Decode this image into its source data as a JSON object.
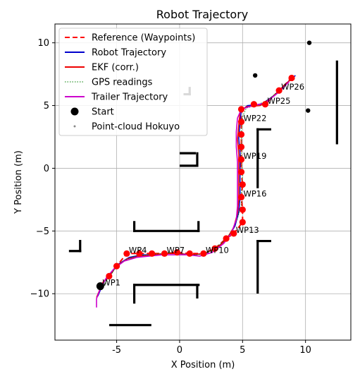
{
  "chart_data": {
    "type": "line",
    "title": "Robot Trajectory",
    "xlabel": "X Position (m)",
    "ylabel": "Y Position (m)",
    "xlim": [
      -9.9,
      13.6
    ],
    "ylim": [
      -13.7,
      11.5
    ],
    "xticks": [
      -5,
      0,
      5,
      10
    ],
    "yticks": [
      -10,
      -5,
      0,
      5,
      10
    ],
    "grid": true,
    "legend_position": "top-left",
    "legend": [
      {
        "label": "Reference (Waypoints)",
        "style": "dashed",
        "color": "#ff0000"
      },
      {
        "label": "Robot Trajectory",
        "style": "solid",
        "color": "#0000cc"
      },
      {
        "label": "EKF (corr.)",
        "style": "solid",
        "color": "#ee0000"
      },
      {
        "label": "GPS readings",
        "style": "dotted",
        "color": "#008000"
      },
      {
        "label": "Trailer Trajectory",
        "style": "solid",
        "color": "#cc00cc"
      },
      {
        "label": "Start",
        "style": "marker",
        "color": "#000000"
      },
      {
        "label": "Point-cloud Hokuyo",
        "style": "dots",
        "color": "#888888"
      }
    ],
    "waypoints": [
      {
        "x": -6.3,
        "y": -9.4
      },
      {
        "x": -5.6,
        "y": -8.6
      },
      {
        "x": -5.0,
        "y": -7.8
      },
      {
        "x": -4.2,
        "y": -6.8
      },
      {
        "x": -3.2,
        "y": -6.8
      },
      {
        "x": -2.2,
        "y": -6.8
      },
      {
        "x": -1.2,
        "y": -6.8
      },
      {
        "x": -0.2,
        "y": -6.7
      },
      {
        "x": 0.8,
        "y": -6.8
      },
      {
        "x": 1.9,
        "y": -6.8
      },
      {
        "x": 2.8,
        "y": -6.4
      },
      {
        "x": 3.7,
        "y": -5.6
      },
      {
        "x": 4.3,
        "y": -5.2
      },
      {
        "x": 5.0,
        "y": -4.3
      },
      {
        "x": 5.0,
        "y": -3.3
      },
      {
        "x": 4.9,
        "y": -2.3
      },
      {
        "x": 5.0,
        "y": -1.3
      },
      {
        "x": 4.9,
        "y": -0.3
      },
      {
        "x": 4.9,
        "y": 0.7
      },
      {
        "x": 4.9,
        "y": 1.7
      },
      {
        "x": 4.9,
        "y": 2.7
      },
      {
        "x": 4.9,
        "y": 3.7
      },
      {
        "x": 4.9,
        "y": 4.7
      },
      {
        "x": 5.9,
        "y": 5.1
      },
      {
        "x": 6.8,
        "y": 5.1
      },
      {
        "x": 7.9,
        "y": 6.2
      },
      {
        "x": 8.9,
        "y": 7.2
      }
    ],
    "waypoint_labels": [
      {
        "text": "WP1",
        "index": 0
      },
      {
        "text": "WP4",
        "index": 3
      },
      {
        "text": "WP7",
        "index": 6
      },
      {
        "text": "WP10",
        "index": 9
      },
      {
        "text": "WP13",
        "index": 12
      },
      {
        "text": "WP16",
        "index": 15
      },
      {
        "text": "WP19",
        "index": 18
      },
      {
        "text": "WP22",
        "index": 21
      },
      {
        "text": "WP25",
        "index": 24
      },
      {
        "text": "WP26",
        "index": 25
      }
    ],
    "start": {
      "x": -6.3,
      "y": -9.4
    },
    "robot_trajectory": [
      [
        -6.5,
        -10.2
      ],
      [
        -6.0,
        -9.0
      ],
      [
        -5.4,
        -8.3
      ],
      [
        -4.8,
        -7.6
      ],
      [
        -4.0,
        -7.1
      ],
      [
        -3.0,
        -6.9
      ],
      [
        -2.0,
        -6.9
      ],
      [
        -1.0,
        -6.8
      ],
      [
        0.0,
        -6.8
      ],
      [
        1.0,
        -6.9
      ],
      [
        2.0,
        -6.8
      ],
      [
        3.0,
        -6.3
      ],
      [
        3.8,
        -5.6
      ],
      [
        4.4,
        -4.6
      ],
      [
        4.7,
        -3.5
      ],
      [
        4.8,
        -2.4
      ],
      [
        4.8,
        -1.2
      ],
      [
        4.8,
        0.0
      ],
      [
        4.8,
        1.2
      ],
      [
        4.7,
        2.4
      ],
      [
        4.8,
        3.6
      ],
      [
        4.9,
        4.6
      ],
      [
        5.4,
        5.0
      ],
      [
        6.5,
        5.1
      ],
      [
        7.5,
        5.8
      ],
      [
        8.5,
        6.8
      ],
      [
        9.2,
        7.4
      ]
    ],
    "ekf_trajectory": [
      [
        -6.6,
        -10.3
      ],
      [
        -6.1,
        -9.1
      ],
      [
        -5.5,
        -8.4
      ],
      [
        -4.9,
        -7.7
      ],
      [
        -4.1,
        -7.2
      ],
      [
        -3.1,
        -7.0
      ],
      [
        -2.1,
        -6.9
      ],
      [
        -1.1,
        -6.8
      ],
      [
        -0.1,
        -6.8
      ],
      [
        0.9,
        -6.9
      ],
      [
        1.9,
        -6.8
      ],
      [
        2.9,
        -6.4
      ],
      [
        3.7,
        -5.7
      ],
      [
        4.3,
        -4.7
      ],
      [
        4.6,
        -3.6
      ],
      [
        4.7,
        -2.5
      ],
      [
        4.7,
        -1.3
      ],
      [
        4.7,
        -0.1
      ],
      [
        4.7,
        1.1
      ],
      [
        4.6,
        2.3
      ],
      [
        4.7,
        3.5
      ],
      [
        4.8,
        4.5
      ],
      [
        5.3,
        4.9
      ],
      [
        6.4,
        5.0
      ],
      [
        7.4,
        5.7
      ],
      [
        8.4,
        6.7
      ],
      [
        9.1,
        7.3
      ]
    ],
    "gps_readings": [
      [
        -6.2,
        -9.7
      ],
      [
        -5.7,
        -8.9
      ],
      [
        -5.2,
        -8.1
      ],
      [
        -4.5,
        -7.4
      ],
      [
        -3.5,
        -7.0
      ],
      [
        -2.5,
        -6.9
      ],
      [
        -1.5,
        -6.8
      ],
      [
        -0.5,
        -6.7
      ],
      [
        0.5,
        -6.9
      ],
      [
        1.5,
        -6.9
      ],
      [
        2.5,
        -6.6
      ],
      [
        3.4,
        -5.9
      ],
      [
        4.1,
        -5.1
      ],
      [
        4.6,
        -4.0
      ],
      [
        4.9,
        -2.9
      ],
      [
        4.9,
        -1.8
      ],
      [
        5.0,
        -0.6
      ],
      [
        4.9,
        0.6
      ],
      [
        4.9,
        1.8
      ],
      [
        4.9,
        3.0
      ],
      [
        5.0,
        4.1
      ],
      [
        5.3,
        4.8
      ],
      [
        6.0,
        5.0
      ],
      [
        7.0,
        5.4
      ],
      [
        8.0,
        6.3
      ],
      [
        8.8,
        7.0
      ]
    ],
    "trailer_trajectory": [
      [
        -6.6,
        -11.1
      ],
      [
        -6.6,
        -10.4
      ],
      [
        -6.3,
        -9.6
      ],
      [
        -5.8,
        -8.7
      ],
      [
        -5.2,
        -8.0
      ],
      [
        -4.4,
        -7.4
      ],
      [
        -3.4,
        -7.1
      ],
      [
        -2.4,
        -7.0
      ],
      [
        -1.4,
        -6.9
      ],
      [
        -0.4,
        -6.9
      ],
      [
        0.6,
        -6.9
      ],
      [
        1.6,
        -7.0
      ],
      [
        2.6,
        -6.7
      ],
      [
        3.5,
        -6.0
      ],
      [
        4.1,
        -5.2
      ],
      [
        4.5,
        -4.1
      ],
      [
        4.6,
        -3.0
      ],
      [
        4.6,
        -1.9
      ],
      [
        4.6,
        -0.7
      ],
      [
        4.6,
        0.5
      ],
      [
        4.5,
        1.7
      ],
      [
        4.5,
        2.9
      ],
      [
        4.6,
        4.0
      ],
      [
        4.9,
        4.7
      ],
      [
        5.8,
        5.0
      ],
      [
        6.8,
        5.2
      ],
      [
        7.8,
        6.0
      ],
      [
        8.7,
        6.9
      ]
    ],
    "point_cloud_walls": [
      {
        "x1": -3.6,
        "y1": -5.0,
        "x2": 1.5,
        "y2": -5.0
      },
      {
        "x1": -3.6,
        "y1": -4.3,
        "x2": -3.6,
        "y2": -5.0
      },
      {
        "x1": 1.5,
        "y1": -4.3,
        "x2": 1.5,
        "y2": -5.0
      },
      {
        "x1": -3.6,
        "y1": -9.3,
        "x2": 1.5,
        "y2": -9.3
      },
      {
        "x1": -3.6,
        "y1": -9.3,
        "x2": -3.6,
        "y2": -10.7
      },
      {
        "x1": 1.4,
        "y1": -9.3,
        "x2": 1.4,
        "y2": -10.3
      },
      {
        "x1": -5.5,
        "y1": -12.5,
        "x2": -2.3,
        "y2": -12.5
      },
      {
        "x1": -8.7,
        "y1": -6.6,
        "x2": -7.9,
        "y2": -6.6
      },
      {
        "x1": -7.9,
        "y1": -6.6,
        "x2": -7.9,
        "y2": -5.8
      },
      {
        "x1": 0.1,
        "y1": 0.2,
        "x2": 1.4,
        "y2": 0.2
      },
      {
        "x1": 1.4,
        "y1": 0.2,
        "x2": 1.4,
        "y2": 1.2
      },
      {
        "x1": 0.1,
        "y1": 1.2,
        "x2": 1.2,
        "y2": 1.2
      },
      {
        "x1": 6.2,
        "y1": 3.1,
        "x2": 7.2,
        "y2": 3.1
      },
      {
        "x1": 6.2,
        "y1": 3.1,
        "x2": 6.2,
        "y2": -1.5
      },
      {
        "x1": 6.2,
        "y1": -5.8,
        "x2": 7.2,
        "y2": -5.8
      },
      {
        "x1": 6.2,
        "y1": -5.8,
        "x2": 6.2,
        "y2": -9.9
      },
      {
        "x1": 12.5,
        "y1": 8.5,
        "x2": 12.5,
        "y2": 2.0
      },
      {
        "x1": 0.8,
        "y1": 5.9,
        "x2": 0.8,
        "y2": 6.4
      },
      {
        "x1": 0.4,
        "y1": 5.9,
        "x2": 0.8,
        "y2": 5.9
      }
    ],
    "point_cloud_blobs": [
      {
        "x": 6.0,
        "y": 7.4
      },
      {
        "x": 10.3,
        "y": 10.0
      },
      {
        "x": 10.2,
        "y": 4.6
      }
    ]
  }
}
